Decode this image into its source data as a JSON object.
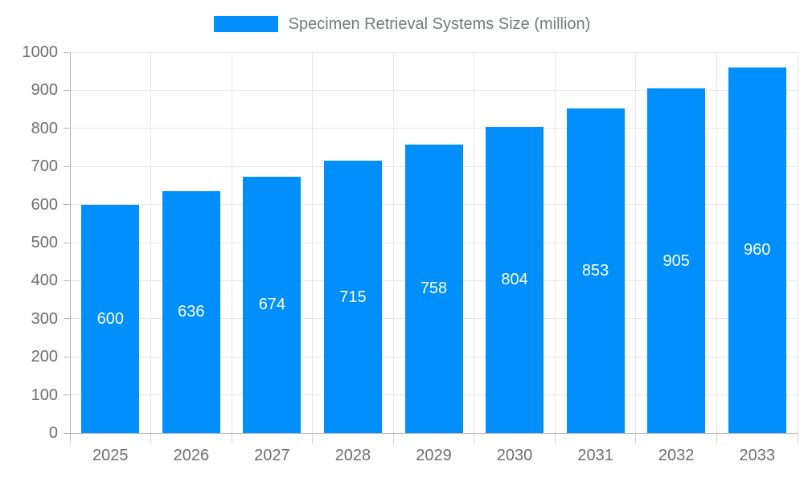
{
  "chart_data": {
    "type": "bar",
    "title": "Specimen Retrieval Systems Size (million)",
    "categories": [
      "2025",
      "2026",
      "2027",
      "2028",
      "2029",
      "2030",
      "2031",
      "2032",
      "2033"
    ],
    "values": [
      600,
      636,
      674,
      715,
      758,
      804,
      853,
      905,
      960
    ],
    "xlabel": "",
    "ylabel": "",
    "ylim": [
      0,
      1000
    ],
    "y_ticks": [
      0,
      100,
      200,
      300,
      400,
      500,
      600,
      700,
      800,
      900,
      1000
    ],
    "grid": "on",
    "legend_position": "top",
    "colors": {
      "bar": "#008FFB",
      "bar_value_label": "#ffffff",
      "axis_text": "#6e6e6e",
      "legend_text": "#75797d",
      "gridline": "#e7e7e7",
      "axis_line": "#b6b6b6"
    }
  }
}
